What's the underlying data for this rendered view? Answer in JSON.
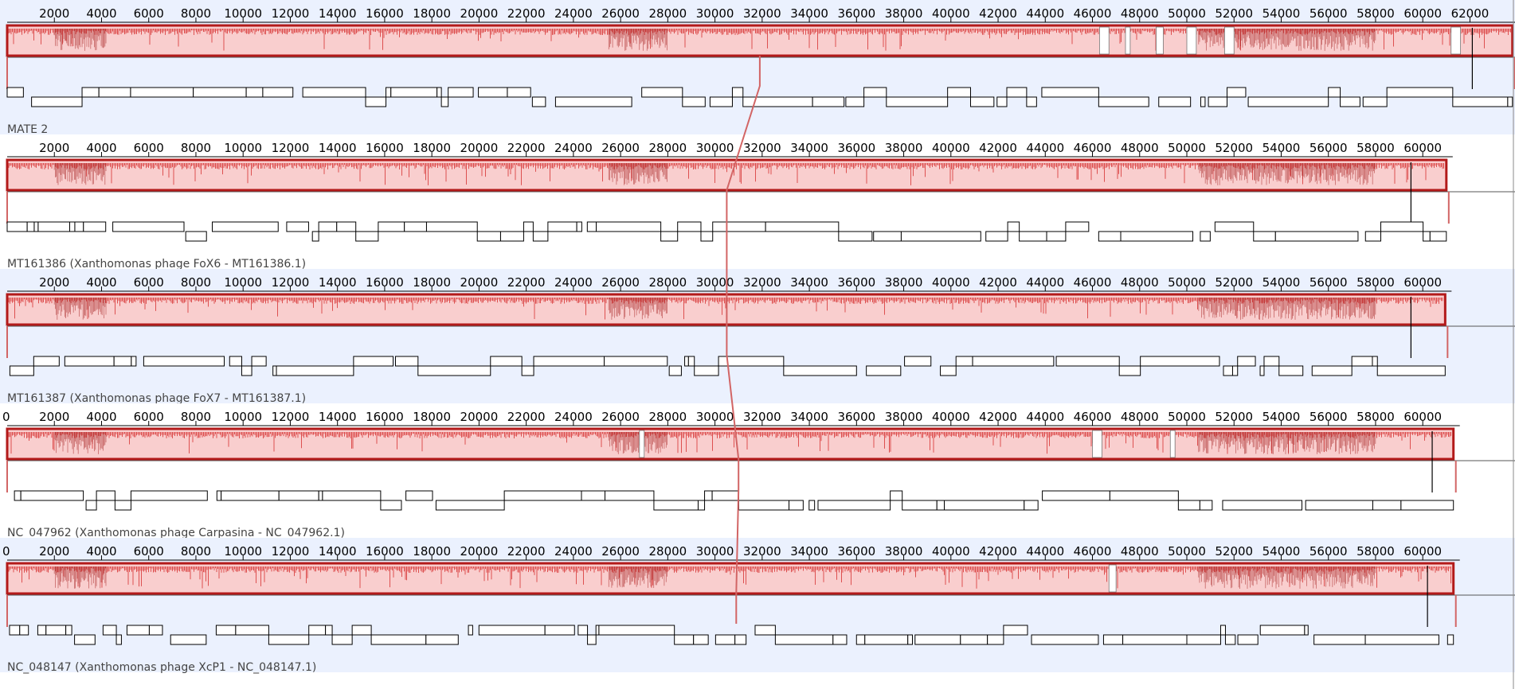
{
  "app": {
    "view": "Mauve-style multiple genome alignment"
  },
  "colors": {
    "panel_shade": "#ebf1fe",
    "panel_plain": "#ffffff",
    "lcb_fill": "#f9cece",
    "lcb_border": "#b31a1a",
    "profile": "#d83a3a",
    "connector": "#d26565",
    "gene_box": "#000000"
  },
  "ticks": [
    "2000",
    "4000",
    "6000",
    "8000",
    "10000",
    "12000",
    "14000",
    "16000",
    "18000",
    "20000",
    "22000",
    "24000",
    "26000",
    "28000",
    "30000",
    "32000",
    "34000",
    "36000",
    "38000",
    "40000",
    "42000",
    "44000",
    "46000",
    "48000",
    "50000",
    "52000",
    "54000",
    "56000",
    "58000",
    "60000",
    "62000"
  ],
  "genomes": [
    {
      "label": "MATE 2",
      "length_bp": 63800,
      "shaded": true,
      "tick_values": [
        2000,
        4000,
        6000,
        8000,
        10000,
        12000,
        14000,
        16000,
        18000,
        20000,
        22000,
        24000,
        26000,
        28000,
        30000,
        32000,
        34000,
        36000,
        38000,
        40000,
        42000,
        44000,
        46000,
        48000,
        50000,
        52000,
        54000,
        56000,
        58000,
        60000,
        62000
      ],
      "zero_shown": false,
      "breakpoint_bp": 31900,
      "end_marker_bp": 62100,
      "profile_gaps_bp": [
        [
          46300,
          46700
        ],
        [
          47400,
          47600
        ],
        [
          48700,
          49000
        ],
        [
          50000,
          50400
        ],
        [
          51600,
          52000
        ],
        [
          61200,
          61600
        ]
      ]
    },
    {
      "label": "MT161386 (Xanthomonas phage FoX6 - MT161386.1)",
      "length_bp": 61000,
      "shaded": false,
      "tick_values": [
        2000,
        4000,
        6000,
        8000,
        10000,
        12000,
        14000,
        16000,
        18000,
        20000,
        22000,
        24000,
        26000,
        28000,
        30000,
        32000,
        34000,
        36000,
        38000,
        40000,
        42000,
        44000,
        46000,
        48000,
        50000,
        52000,
        54000,
        56000,
        58000,
        60000
      ],
      "zero_shown": false,
      "breakpoint_bp": 30500,
      "end_marker_bp": 59500,
      "profile_gaps_bp": []
    },
    {
      "label": "MT161387 (Xanthomonas phage FoX7 - MT161387.1)",
      "length_bp": 60950,
      "shaded": true,
      "tick_values": [
        2000,
        4000,
        6000,
        8000,
        10000,
        12000,
        14000,
        16000,
        18000,
        20000,
        22000,
        24000,
        26000,
        28000,
        30000,
        32000,
        34000,
        36000,
        38000,
        40000,
        42000,
        44000,
        46000,
        48000,
        50000,
        52000,
        54000,
        56000,
        58000,
        60000
      ],
      "zero_shown": false,
      "breakpoint_bp": 30500,
      "end_marker_bp": 59500,
      "profile_gaps_bp": []
    },
    {
      "label": "NC_047962 (Xanthomonas phage Carpasina - NC_047962.1)",
      "length_bp": 61300,
      "shaded": false,
      "tick_values": [
        2000,
        4000,
        6000,
        8000,
        10000,
        12000,
        14000,
        16000,
        18000,
        20000,
        22000,
        24000,
        26000,
        28000,
        30000,
        32000,
        34000,
        36000,
        38000,
        40000,
        42000,
        44000,
        46000,
        48000,
        50000,
        52000,
        54000,
        56000,
        58000,
        60000
      ],
      "zero_shown": true,
      "breakpoint_bp": 31000,
      "end_marker_bp": 60400,
      "profile_gaps_bp": [
        [
          26800,
          27000
        ],
        [
          46000,
          46400
        ],
        [
          49300,
          49500
        ]
      ]
    },
    {
      "label": "NC_048147 (Xanthomonas phage XcP1 - NC_048147.1)",
      "length_bp": 61300,
      "shaded": true,
      "tick_values": [
        2000,
        4000,
        6000,
        8000,
        10000,
        12000,
        14000,
        16000,
        18000,
        20000,
        22000,
        24000,
        26000,
        28000,
        30000,
        32000,
        34000,
        36000,
        38000,
        40000,
        42000,
        44000,
        46000,
        48000,
        50000,
        52000,
        54000,
        56000,
        58000,
        60000
      ],
      "zero_shown": true,
      "breakpoint_bp": 30900,
      "end_marker_bp": 60200,
      "profile_gaps_bp": [
        [
          46700,
          47000
        ]
      ]
    }
  ]
}
